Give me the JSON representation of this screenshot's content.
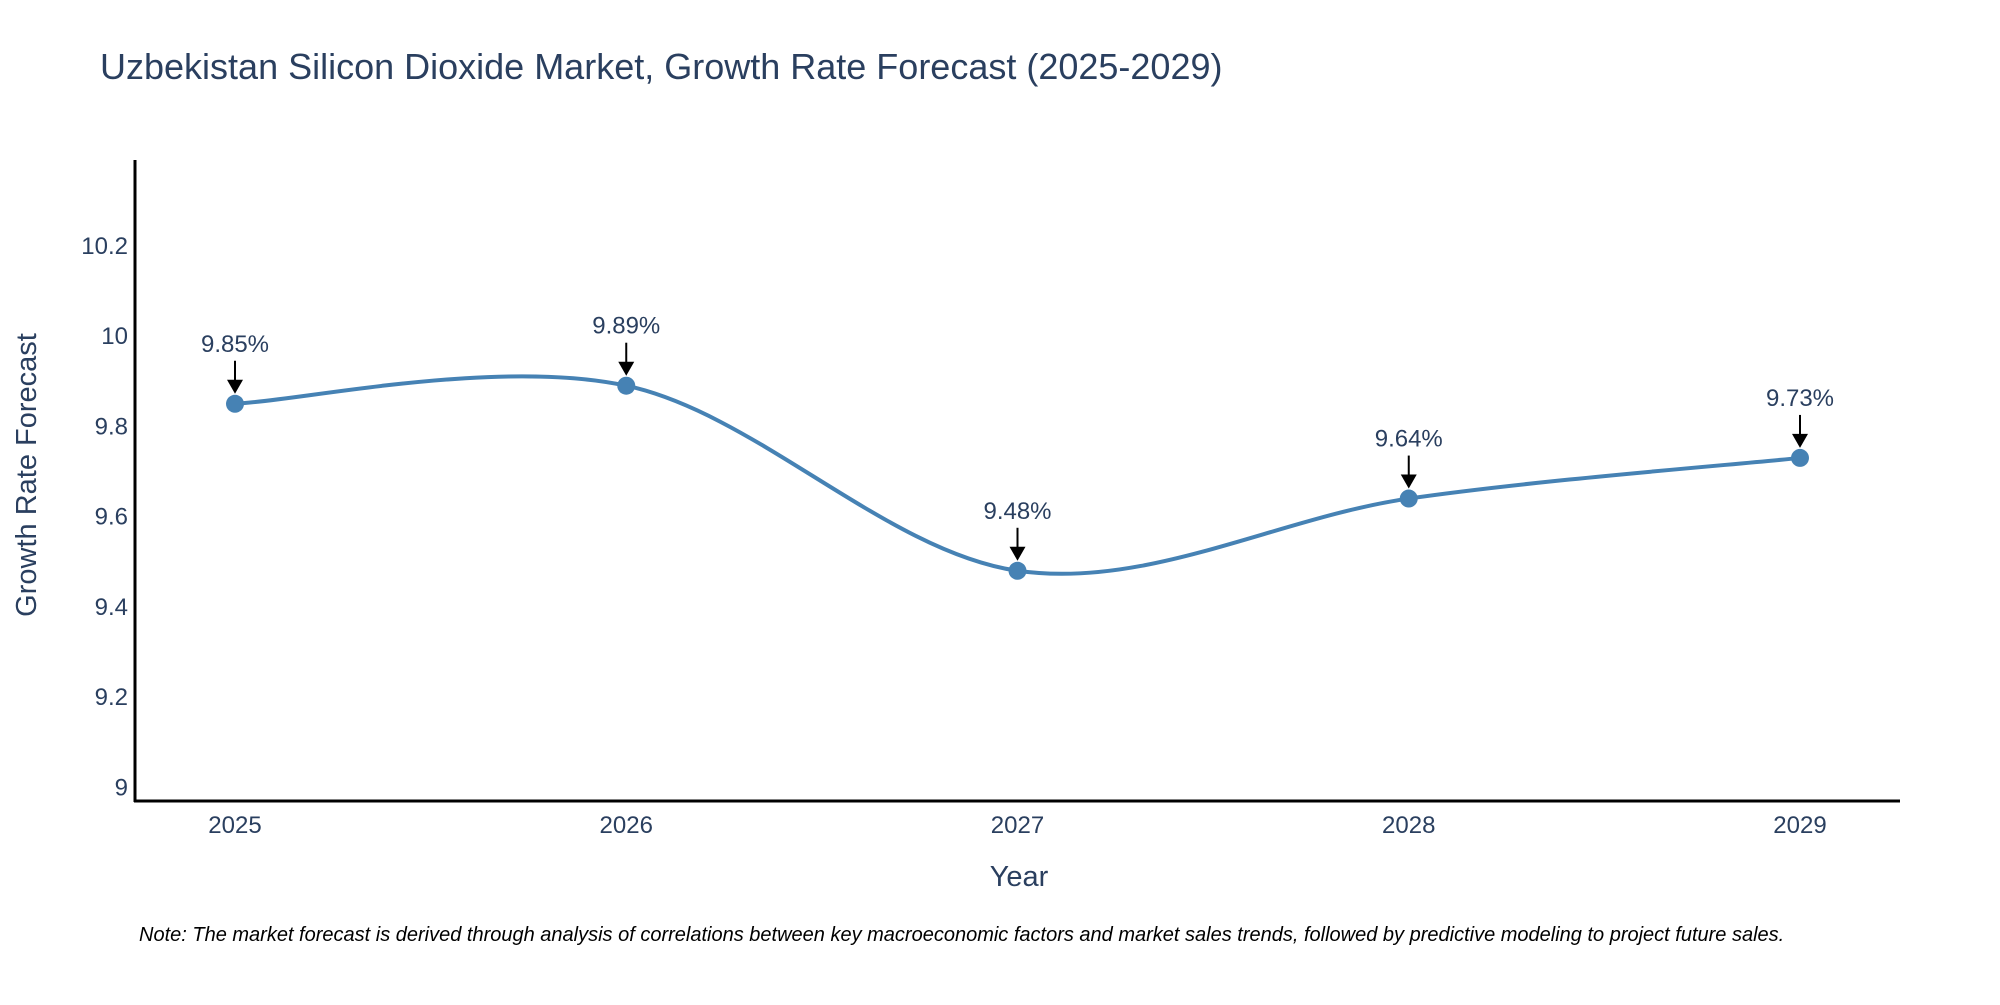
{
  "chart_data": {
    "type": "line",
    "title": "Uzbekistan Silicon Dioxide Market, Growth Rate Forecast (2025-2029)",
    "xlabel": "Year",
    "ylabel": "Growth Rate Forecast",
    "categories": [
      "2025",
      "2026",
      "2027",
      "2028",
      "2029"
    ],
    "values": [
      9.85,
      9.89,
      9.48,
      9.64,
      9.73
    ],
    "data_labels": [
      "9.85%",
      "9.89%",
      "9.48%",
      "9.64%",
      "9.73%"
    ],
    "ylim": [
      8.97,
      10.39
    ],
    "yticks": [
      9,
      9.2,
      9.4,
      9.6,
      9.8,
      10,
      10.2
    ],
    "ytick_labels": [
      "9",
      "9.2",
      "9.4",
      "9.6",
      "9.8",
      "10",
      "10.2"
    ],
    "line_shape": "spline",
    "grid": false,
    "note": "Note: The market forecast is derived through analysis of correlations between key macroeconomic factors and market sales trends, followed by predictive modeling to project future sales."
  },
  "colors": {
    "line": "#4682B4",
    "marker": "#4682B4",
    "text": "#2A3F5F",
    "axis": "#000000",
    "arrow": "#000000"
  }
}
